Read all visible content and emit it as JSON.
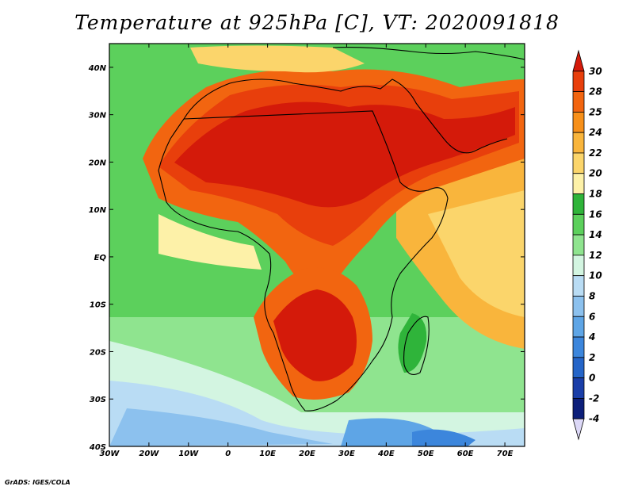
{
  "title": "Temperature at 925hPa [C], VT: 2020091818",
  "footer": "GrADS: IGES/COLA",
  "map": {
    "variable": "Temperature at 925hPa",
    "units": "C",
    "valid_time": "2020091818",
    "lon_range": [
      -30,
      75
    ],
    "lat_range": [
      -40,
      45
    ],
    "lon_ticks": [
      "30W",
      "20W",
      "10W",
      "0",
      "10E",
      "20E",
      "30E",
      "40E",
      "50E",
      "60E",
      "70E"
    ],
    "lat_ticks": [
      "40N",
      "30N",
      "20N",
      "10N",
      "EQ",
      "10S",
      "20S",
      "30S",
      "40S"
    ]
  },
  "colorbar": {
    "labels": [
      "30",
      "28",
      "25",
      "24",
      "22",
      "20",
      "18",
      "16",
      "14",
      "12",
      "10",
      "8",
      "6",
      "4",
      "2",
      "0",
      "-2",
      "-4"
    ],
    "colors": [
      "#d41a0a",
      "#e83f0c",
      "#f26510",
      "#f7901a",
      "#f9b53c",
      "#fbd56b",
      "#fdf1a8",
      "#2fb43a",
      "#5cd05c",
      "#8fe48f",
      "#d3f5e1",
      "#b9dcf4",
      "#8cc1ee",
      "#5ea5e6",
      "#3c86dc",
      "#2565c8",
      "#1a3ea8",
      "#0d1f7a",
      "#dcd8f7"
    ]
  }
}
